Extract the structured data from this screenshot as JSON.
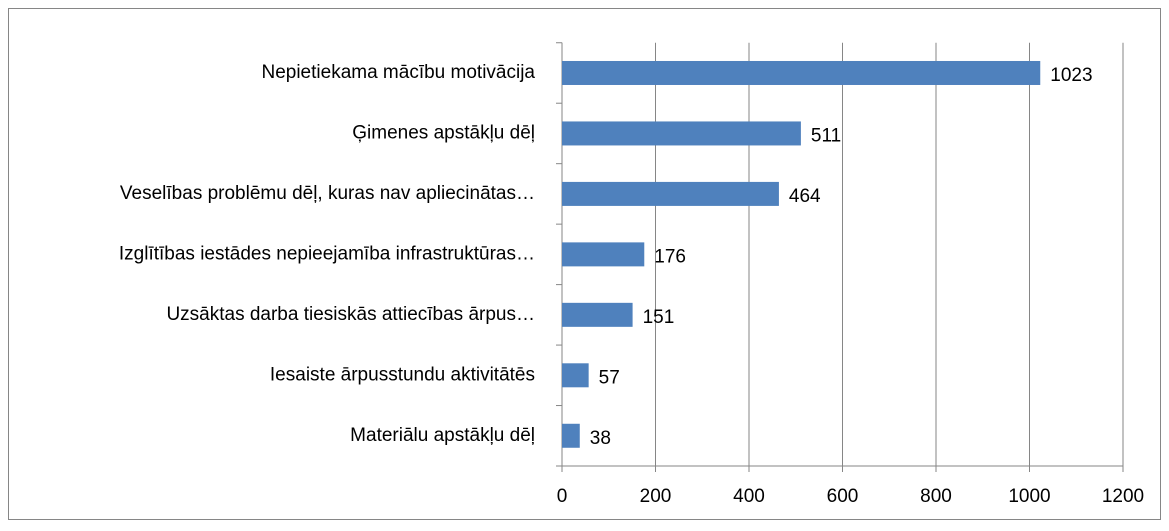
{
  "chart_data": {
    "type": "bar",
    "orientation": "horizontal",
    "categories": [
      "Nepietiekama mācību motivācija",
      "Ģimenes apstākļu dēļ",
      "Veselības problēmu dēļ, kuras nav apliecinātas…",
      "Izglītības iestādes nepieejamība infrastruktūras…",
      "Uzsāktas darba tiesiskās attiecības ārpus…",
      "Iesaiste ārpusstundu aktivitātēs",
      "Materiālu apstākļu dēļ"
    ],
    "values": [
      1023,
      511,
      464,
      176,
      151,
      57,
      38
    ],
    "color": "#4f81bd",
    "xlim": [
      0,
      1200
    ],
    "xticks": [
      0,
      200,
      400,
      600,
      800,
      1000,
      1200
    ],
    "grid": true
  }
}
